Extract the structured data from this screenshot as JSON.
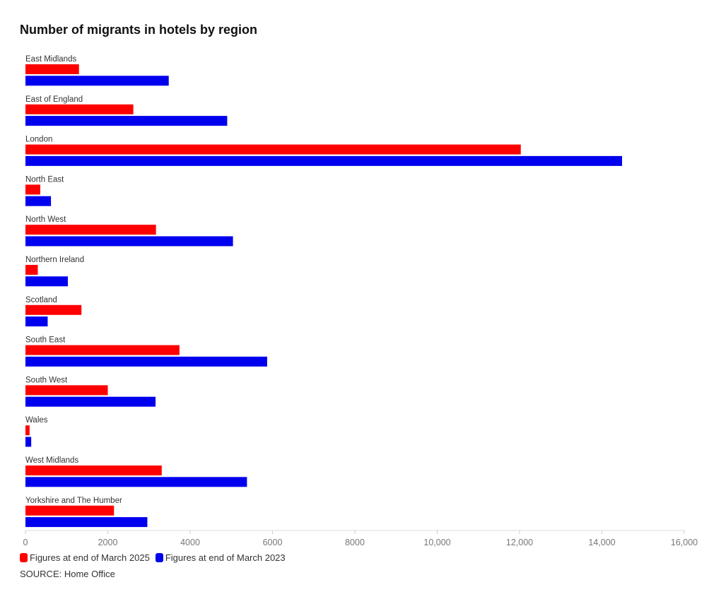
{
  "chart_data": {
    "type": "bar",
    "orientation": "horizontal",
    "title": "Number of migrants in hotels by region",
    "categories": [
      "East Midlands",
      "East of England",
      "London",
      "North East",
      "North West",
      "Northern Ireland",
      "Scotland",
      "South East",
      "South West",
      "Wales",
      "West Midlands",
      "Yorkshire and The Humber"
    ],
    "series": [
      {
        "name": "Figures at end of March 2025",
        "color": "#ff0000",
        "values": [
          1300,
          2620,
          12030,
          360,
          3170,
          300,
          1360,
          3740,
          2000,
          100,
          3310,
          2150
        ]
      },
      {
        "name": "Figures at end of March 2023",
        "color": "#0000ee",
        "values": [
          3480,
          4900,
          14490,
          620,
          5040,
          1030,
          540,
          5870,
          3160,
          140,
          5380,
          2960
        ]
      }
    ],
    "xlim": [
      0,
      16000
    ],
    "xticks": [
      0,
      2000,
      4000,
      6000,
      8000,
      10000,
      12000,
      14000,
      16000
    ],
    "xtick_labels": [
      "0",
      "2000",
      "4000",
      "6000",
      "8000",
      "10,000",
      "12,000",
      "14,000",
      "16,000"
    ],
    "xlabel": "",
    "ylabel": "",
    "legend_position": "bottom-left",
    "grid": false
  },
  "source": "SOURCE: Home Office"
}
